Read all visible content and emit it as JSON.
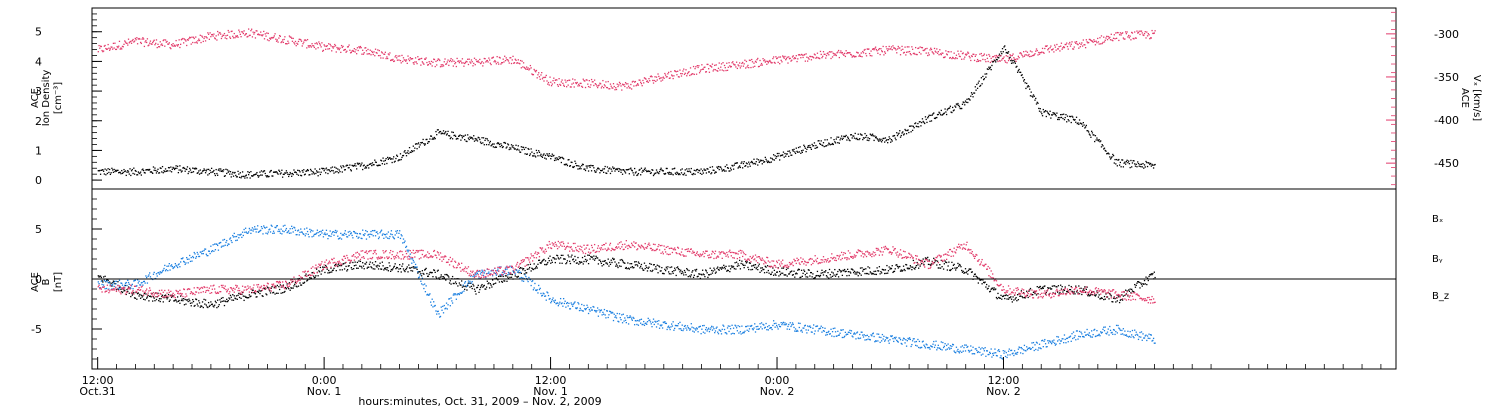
{
  "colors": {
    "black": "#000000",
    "blue": "#1a7fe0",
    "pink": "#e23a6a",
    "axis": "#000000"
  },
  "panels": {
    "top": {
      "left_label_1": "ACE",
      "left_label_2": "Ion Density",
      "left_units": "[cm⁻³]",
      "right_label_1": "ACE",
      "right_label_2": "Vₓ [km/s]"
    },
    "bottom": {
      "left_label_1": "ACE",
      "left_label_2": "B",
      "left_units": "[nT]",
      "legend": [
        "Bₓ",
        "Bᵧ",
        "B_z"
      ]
    }
  },
  "x_axis": {
    "title": "hours:minutes, Oct. 31, 2009 – Nov. 2, 2009",
    "ticks": [
      {
        "time": "12:00",
        "date": "Oct.31"
      },
      {
        "time": "0:00",
        "date": "Nov. 1"
      },
      {
        "time": "12:00",
        "date": "Nov. 1"
      },
      {
        "time": "0:00",
        "date": "Nov. 2"
      },
      {
        "time": "12:00",
        "date": "Nov. 2"
      }
    ]
  },
  "chart_data": [
    {
      "type": "scatter",
      "title": "",
      "xlabel": "hours:minutes, Oct. 31, 2009 – Nov. 2, 2009",
      "xlim_hours_from_oct31_0000": [
        11.7,
        80.8
      ],
      "series": [
        {
          "name": "Ion Density",
          "axis": "left",
          "unit": "cm^-3",
          "ylim": [
            -0.3,
            5.8
          ],
          "y_ticks": [
            0,
            1,
            2,
            3,
            4,
            5
          ],
          "x_hours": [
            12,
            14,
            16,
            18,
            20,
            22,
            24,
            26,
            28,
            30,
            32,
            34,
            36,
            38,
            40,
            42,
            44,
            46,
            48,
            50,
            52,
            54,
            56,
            58,
            60,
            62,
            64,
            66,
            68
          ],
          "values": [
            0.3,
            0.3,
            0.4,
            0.3,
            0.2,
            0.25,
            0.3,
            0.5,
            0.8,
            1.6,
            1.4,
            1.1,
            0.8,
            0.4,
            0.3,
            0.3,
            0.3,
            0.5,
            0.8,
            1.2,
            1.5,
            1.4,
            2.1,
            2.6,
            4.5,
            2.3,
            2.0,
            0.6,
            0.5
          ]
        },
        {
          "name": "Vx",
          "axis": "right",
          "unit": "km/s",
          "ylim": [
            -480,
            -270
          ],
          "y_ticks": [
            -300,
            -350,
            -400,
            -450
          ],
          "x_hours": [
            12,
            14,
            16,
            18,
            20,
            22,
            24,
            26,
            28,
            30,
            32,
            34,
            36,
            38,
            40,
            42,
            44,
            46,
            48,
            50,
            52,
            54,
            56,
            58,
            60,
            62,
            64,
            66,
            68
          ],
          "values": [
            -318,
            -308,
            -312,
            -302,
            -298,
            -306,
            -315,
            -318,
            -328,
            -333,
            -332,
            -329,
            -355,
            -357,
            -360,
            -348,
            -340,
            -335,
            -330,
            -325,
            -322,
            -318,
            -320,
            -325,
            -330,
            -318,
            -312,
            -302,
            -300
          ]
        }
      ]
    },
    {
      "type": "scatter",
      "title": "",
      "xlabel": "hours:minutes, Oct. 31, 2009 – Nov. 2, 2009",
      "ylabel": "B [nT]",
      "ylim": [
        -9,
        9
      ],
      "y_ticks": [
        -5,
        0,
        5
      ],
      "series": [
        {
          "name": "Bₓ",
          "color": "#000000",
          "x_hours": [
            12,
            14,
            16,
            18,
            20,
            22,
            24,
            26,
            28,
            30,
            32,
            34,
            36,
            38,
            40,
            42,
            44,
            46,
            48,
            50,
            52,
            54,
            56,
            58,
            60,
            62,
            64,
            66,
            68
          ],
          "values": [
            0.3,
            -1.5,
            -2.0,
            -2.5,
            -1.5,
            -0.8,
            1.0,
            1.5,
            1.2,
            0.5,
            -1.0,
            0.5,
            2.0,
            2.0,
            1.5,
            1.0,
            0.5,
            1.5,
            0.8,
            0.5,
            0.8,
            1.0,
            1.8,
            1.0,
            -2.0,
            -1.0,
            -1.0,
            -2.0,
            0.5
          ]
        },
        {
          "name": "Bᵧ",
          "color": "#1a7fe0",
          "x_hours": [
            12,
            14,
            16,
            18,
            20,
            22,
            24,
            26,
            28,
            30,
            32,
            34,
            36,
            38,
            40,
            42,
            44,
            46,
            48,
            50,
            52,
            54,
            56,
            58,
            60,
            62,
            64,
            66,
            68
          ],
          "values": [
            -0.5,
            -0.5,
            1.5,
            3.0,
            5.0,
            5.0,
            4.5,
            4.5,
            4.5,
            -3.5,
            0.5,
            1.0,
            -2.0,
            -3.0,
            -4.0,
            -4.5,
            -5.0,
            -5.0,
            -4.5,
            -5.0,
            -5.5,
            -6.0,
            -6.5,
            -7.0,
            -7.5,
            -6.5,
            -5.5,
            -5.0,
            -6.0
          ]
        },
        {
          "name": "B_z",
          "color": "#e23a6a",
          "x_hours": [
            12,
            14,
            16,
            18,
            20,
            22,
            24,
            26,
            28,
            30,
            32,
            34,
            36,
            38,
            40,
            42,
            44,
            46,
            48,
            50,
            52,
            54,
            56,
            58,
            60,
            62,
            64,
            66,
            68
          ],
          "values": [
            -1.0,
            -1.0,
            -1.5,
            -1.0,
            -1.0,
            -0.5,
            1.5,
            2.5,
            2.5,
            2.5,
            0.5,
            1.0,
            3.5,
            3.0,
            3.5,
            3.0,
            2.5,
            2.5,
            1.5,
            2.0,
            2.5,
            3.0,
            1.5,
            3.5,
            -1.0,
            -1.5,
            -1.0,
            -1.5,
            -2.0
          ]
        }
      ]
    }
  ]
}
